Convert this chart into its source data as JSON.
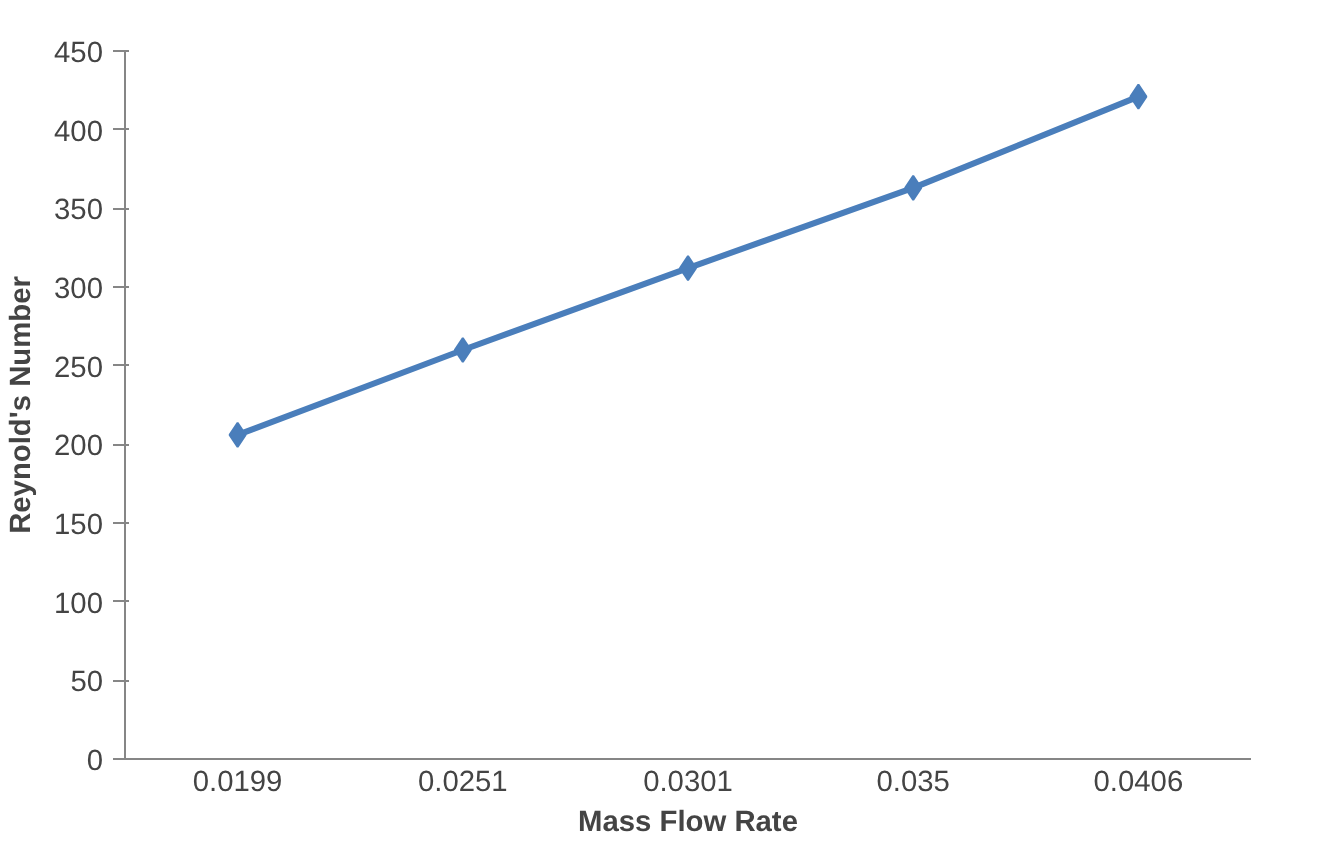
{
  "chart_data": {
    "type": "line",
    "xlabel": "Mass Flow Rate",
    "ylabel": "Reynold's Number",
    "categories": [
      "0.0199",
      "0.0251",
      "0.0301",
      "0.035",
      "0.0406"
    ],
    "series": [
      {
        "color": "#4a7ebb",
        "values": [
          206,
          260,
          312,
          363,
          421
        ]
      }
    ],
    "ylim": [
      0,
      450
    ],
    "yticks": [
      0,
      50,
      100,
      150,
      200,
      250,
      300,
      350,
      400,
      450
    ],
    "grid": false,
    "marker": "diamond",
    "line_style": "solid"
  }
}
